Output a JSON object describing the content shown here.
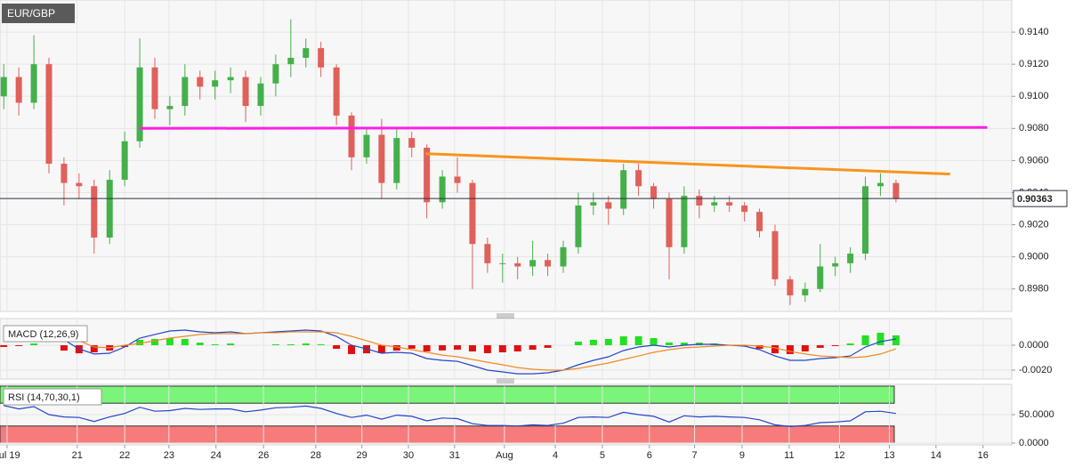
{
  "chart_data": [
    {
      "type": "candlestick",
      "title": "EUR/GBP",
      "x": [
        0.08,
        0.4,
        0.72,
        1.04,
        1.36,
        1.68,
        2.0,
        2.33,
        2.65,
        2.97,
        3.29,
        3.61,
        3.93,
        4.25,
        4.57,
        4.9,
        5.22,
        5.54,
        5.86,
        6.18,
        6.5,
        6.82,
        7.15,
        7.47,
        7.79,
        8.11,
        8.43,
        8.75,
        9.07,
        9.4,
        9.72,
        10.04,
        10.36,
        10.68,
        11.0,
        11.32,
        11.64,
        11.97,
        12.29,
        12.61,
        12.93,
        13.25,
        13.57,
        13.89,
        14.22,
        14.54,
        14.86,
        15.18,
        15.5,
        15.82,
        16.14,
        16.47,
        16.79,
        17.11,
        17.43,
        17.75,
        18.07,
        18.39,
        18.71,
        19.04
      ],
      "open": [
        0.91,
        0.9112,
        0.9096,
        0.912,
        0.9058,
        0.9046,
        0.9044,
        0.9012,
        0.9048,
        0.9072,
        0.9118,
        0.9092,
        0.9094,
        0.9112,
        0.9106,
        0.911,
        0.9112,
        0.9094,
        0.9108,
        0.912,
        0.9124,
        0.913,
        0.9118,
        0.9088,
        0.9062,
        0.9076,
        0.9046,
        0.9074,
        0.9068,
        0.9034,
        0.905,
        0.9046,
        0.9008,
        0.8996,
        0.8996,
        0.8994,
        0.8998,
        0.8994,
        0.9006,
        0.9032,
        0.9034,
        0.903,
        0.9054,
        0.9044,
        0.9036,
        0.9006,
        0.9038,
        0.9032,
        0.9034,
        0.9032,
        0.9028,
        0.9016,
        0.8986,
        0.8976,
        0.898,
        0.8994,
        0.8996,
        0.9002,
        0.9044,
        0.9046
      ],
      "high": [
        0.912,
        0.9118,
        0.9138,
        0.9124,
        0.9062,
        0.9052,
        0.9048,
        0.9054,
        0.9078,
        0.9136,
        0.9124,
        0.91,
        0.912,
        0.9116,
        0.9116,
        0.9118,
        0.9116,
        0.9112,
        0.9126,
        0.9148,
        0.9136,
        0.9134,
        0.912,
        0.909,
        0.908,
        0.9086,
        0.908,
        0.9078,
        0.907,
        0.9054,
        0.9062,
        0.9048,
        0.9012,
        0.9002,
        0.9,
        0.901,
        0.9002,
        0.901,
        0.904,
        0.904,
        0.9038,
        0.9058,
        0.9058,
        0.9046,
        0.904,
        0.9044,
        0.9042,
        0.9038,
        0.9038,
        0.9034,
        0.903,
        0.902,
        0.8988,
        0.8984,
        0.9008,
        0.9,
        0.9006,
        0.905,
        0.9052,
        0.9048
      ],
      "low": [
        0.9092,
        0.9088,
        0.9092,
        0.9052,
        0.9032,
        0.9036,
        0.9002,
        0.9008,
        0.9044,
        0.9068,
        0.9086,
        0.9082,
        0.9088,
        0.9098,
        0.9098,
        0.9102,
        0.9084,
        0.9088,
        0.91,
        0.9112,
        0.9118,
        0.9112,
        0.9082,
        0.9054,
        0.9058,
        0.9036,
        0.9042,
        0.9062,
        0.9024,
        0.903,
        0.904,
        0.898,
        0.899,
        0.8984,
        0.8986,
        0.8988,
        0.8988,
        0.899,
        0.9002,
        0.9026,
        0.902,
        0.9026,
        0.9038,
        0.903,
        0.8986,
        0.9002,
        0.9024,
        0.9028,
        0.9028,
        0.9022,
        0.9012,
        0.8982,
        0.897,
        0.8972,
        0.8978,
        0.8988,
        0.899,
        0.8998,
        0.9038,
        0.9034
      ],
      "close": [
        0.9112,
        0.9096,
        0.912,
        0.9058,
        0.9046,
        0.9044,
        0.9012,
        0.9048,
        0.9072,
        0.9118,
        0.9092,
        0.9094,
        0.9112,
        0.9106,
        0.911,
        0.9112,
        0.9094,
        0.9108,
        0.912,
        0.9124,
        0.913,
        0.9118,
        0.9088,
        0.9062,
        0.9076,
        0.9046,
        0.9074,
        0.9068,
        0.9034,
        0.905,
        0.9046,
        0.9008,
        0.8996,
        0.8996,
        0.8994,
        0.8998,
        0.8994,
        0.9006,
        0.9032,
        0.9034,
        0.903,
        0.9054,
        0.9044,
        0.9036,
        0.9006,
        0.9038,
        0.9032,
        0.9034,
        0.9032,
        0.9028,
        0.9016,
        0.8986,
        0.8976,
        0.898,
        0.8994,
        0.8996,
        0.9002,
        0.9044,
        0.9046,
        0.9036
      ],
      "up_color": "#45b04a",
      "down_color": "#e0605a",
      "xlim": [
        0,
        21.5
      ],
      "ylim": [
        0.8966,
        0.916
      ],
      "yticks": [
        {
          "value": 0.914,
          "label": "0.9140"
        },
        {
          "value": 0.912,
          "label": "0.9120"
        },
        {
          "value": 0.91,
          "label": "0.9100"
        },
        {
          "value": 0.908,
          "label": "0.9080"
        },
        {
          "value": 0.906,
          "label": "0.9060"
        },
        {
          "value": 0.904,
          "label": "0.9040"
        },
        {
          "value": 0.902,
          "label": "0.9020"
        },
        {
          "value": 0.9,
          "label": "0.9000"
        },
        {
          "value": 0.898,
          "label": "0.8980"
        }
      ],
      "last_price": 0.90363,
      "lines": [
        {
          "color": "#ff1ee6",
          "x": [
            2.97,
            20.98
          ],
          "y": [
            0.908,
            0.90806
          ]
        },
        {
          "color": "#f7941d",
          "x": [
            9.04,
            20.19
          ],
          "y": [
            0.90643,
            0.90516
          ]
        }
      ],
      "grid": true
    },
    {
      "type": "macd",
      "title": "MACD (12,26,9)",
      "x": [
        0.08,
        0.4,
        0.72,
        1.04,
        1.36,
        1.68,
        2.0,
        2.33,
        2.65,
        2.97,
        3.29,
        3.61,
        3.93,
        4.25,
        4.57,
        4.9,
        5.22,
        5.54,
        5.86,
        6.18,
        6.5,
        6.82,
        7.15,
        7.47,
        7.79,
        8.11,
        8.43,
        8.75,
        9.07,
        9.4,
        9.72,
        10.04,
        10.36,
        10.68,
        11.0,
        11.32,
        11.64,
        11.97,
        12.29,
        12.61,
        12.93,
        13.25,
        13.57,
        13.89,
        14.22,
        14.54,
        14.86,
        15.18,
        15.5,
        15.82,
        16.14,
        16.47,
        16.79,
        17.11,
        17.43,
        17.75,
        18.07,
        18.39,
        18.71,
        19.04
      ],
      "histogram": [
        -0.00014,
        -7e-05,
        0.00014,
        0,
        -0.00043,
        -0.00065,
        -0.00057,
        -0.00043,
        -0.00014,
        0.00043,
        0.0005,
        0.00057,
        0.0005,
        0.00021,
        7e-05,
        0.00014,
        0,
        0,
        7e-05,
        7e-05,
        0.00014,
        7e-05,
        -0.00029,
        -0.00071,
        -0.00065,
        -0.00064,
        -0.00043,
        -0.00028,
        -0.0005,
        -0.00042,
        -0.00036,
        -0.0005,
        -0.00064,
        -0.00057,
        -0.0005,
        -0.00036,
        -0.00021,
        0,
        0.00029,
        0.00043,
        0.0005,
        0.00071,
        0.00072,
        0.00057,
        0.00022,
        0.00021,
        0.00021,
        0.00014,
        0,
        -7e-05,
        -0.00029,
        -0.00065,
        -0.00071,
        -0.0005,
        -0.00021,
        -7e-05,
        0.00014,
        0.00079,
        0.001,
        0.00079
      ],
      "histogram_up_color": "#22e022",
      "histogram_down_color": "#e01010",
      "series": [
        {
          "color": "#2346c8",
          "values": [
            0.00129,
            0.00129,
            0.00143,
            0.00114,
            0.00043,
            -0.00029,
            -0.00071,
            -0.00064,
            -0.00014,
            0.00057,
            0.00086,
            0.00114,
            0.00121,
            0.00107,
            0.001,
            0.00107,
            0.00093,
            0.001,
            0.00107,
            0.00114,
            0.00121,
            0.00114,
            0.00071,
            0,
            -0.00029,
            -0.00064,
            -0.00057,
            -0.00064,
            -0.00107,
            -0.00121,
            -0.00129,
            -0.00164,
            -0.002,
            -0.00214,
            -0.00229,
            -0.00229,
            -0.00221,
            -0.002,
            -0.00157,
            -0.00121,
            -0.00093,
            -0.00043,
            -0.00014,
            0,
            -0.00014,
            0,
            7e-05,
            7e-05,
            0,
            -7e-05,
            -0.00036,
            -0.00086,
            -0.00121,
            -0.00121,
            -0.00107,
            -0.001,
            -0.00086,
            -0.00014,
            0.00029,
            0.0005
          ]
        },
        {
          "color": "#f08a24",
          "values": [
            0.00143,
            0.00136,
            0.00129,
            0.00114,
            0.00086,
            0.00036,
            -0.00014,
            -0.00021,
            0,
            0.00014,
            0.00036,
            0.00057,
            0.00071,
            0.00086,
            0.00093,
            0.00093,
            0.00093,
            0.001,
            0.001,
            0.00107,
            0.00107,
            0.00107,
            0.001,
            0.00071,
            0.00036,
            0,
            -0.00014,
            -0.00036,
            -0.00057,
            -0.00079,
            -0.00093,
            -0.00114,
            -0.00136,
            -0.00157,
            -0.00179,
            -0.00193,
            -0.002,
            -0.002,
            -0.00186,
            -0.00164,
            -0.00143,
            -0.00114,
            -0.00086,
            -0.00057,
            -0.00036,
            -0.00021,
            -0.00014,
            -7e-05,
            0,
            0,
            -7e-05,
            -0.00021,
            -0.0005,
            -0.00071,
            -0.00086,
            -0.00093,
            -0.001,
            -0.00093,
            -0.00071,
            -0.00029
          ]
        }
      ],
      "xlim": [
        0,
        21.5
      ],
      "ylim": [
        -0.00264,
        0.00214
      ],
      "yticks": [
        {
          "value": 0,
          "label": "0.0000"
        },
        {
          "value": -0.002,
          "label": "-0.0020"
        }
      ],
      "grid": true
    },
    {
      "type": "rsi",
      "title": "RSI (14,70,30,1)",
      "x": [
        0.08,
        0.4,
        0.72,
        1.04,
        1.36,
        1.68,
        2.0,
        2.33,
        2.65,
        2.97,
        3.29,
        3.61,
        3.93,
        4.25,
        4.57,
        4.9,
        5.22,
        5.54,
        5.86,
        6.18,
        6.5,
        6.82,
        7.15,
        7.47,
        7.79,
        8.11,
        8.43,
        8.75,
        9.07,
        9.4,
        9.72,
        10.04,
        10.36,
        10.68,
        11.0,
        11.32,
        11.64,
        11.97,
        12.29,
        12.61,
        12.93,
        13.25,
        13.57,
        13.89,
        14.22,
        14.54,
        14.86,
        15.18,
        15.5,
        15.82,
        16.14,
        16.47,
        16.79,
        17.11,
        17.43,
        17.75,
        18.07,
        18.39,
        18.71,
        19.04
      ],
      "values": [
        66,
        60,
        64,
        50,
        46,
        45,
        38,
        46,
        52,
        63,
        56,
        57,
        61,
        59,
        60,
        60,
        55,
        58,
        62,
        63,
        65,
        61,
        52,
        45,
        49,
        42,
        49,
        47,
        39,
        44,
        43,
        34,
        31,
        31,
        30,
        32,
        31,
        35,
        45,
        46,
        45,
        54,
        50,
        47,
        37,
        48,
        46,
        47,
        46,
        45,
        41,
        32,
        29,
        31,
        36,
        37,
        39,
        55,
        56,
        52
      ],
      "color": "#2346c8",
      "bands": [
        {
          "from": 70,
          "to": 100,
          "color": "#7af57a"
        },
        {
          "from": 0,
          "to": 30,
          "color": "#f77b7b"
        }
      ],
      "xlim": [
        0,
        21.5
      ],
      "ylim": [
        0,
        100
      ],
      "yticks": [
        {
          "value": 50,
          "label": "50.0000"
        },
        {
          "value": 0,
          "label": "0.0000"
        }
      ],
      "xticks": [
        {
          "value": 0.15,
          "label": "Jul 19"
        },
        {
          "value": 1.64,
          "label": "21"
        },
        {
          "value": 2.65,
          "label": "22"
        },
        {
          "value": 3.59,
          "label": "23"
        },
        {
          "value": 4.59,
          "label": "24"
        },
        {
          "value": 5.6,
          "label": "26"
        },
        {
          "value": 6.71,
          "label": "28"
        },
        {
          "value": 7.69,
          "label": "29"
        },
        {
          "value": 8.68,
          "label": "30"
        },
        {
          "value": 9.66,
          "label": "31"
        },
        {
          "value": 10.72,
          "label": "Aug"
        },
        {
          "value": 11.8,
          "label": "4"
        },
        {
          "value": 12.8,
          "label": "5"
        },
        {
          "value": 13.8,
          "label": "6"
        },
        {
          "value": 14.76,
          "label": "7"
        },
        {
          "value": 15.77,
          "label": "9"
        },
        {
          "value": 16.77,
          "label": "11"
        },
        {
          "value": 17.84,
          "label": "12"
        },
        {
          "value": 18.9,
          "label": "13"
        },
        {
          "value": 19.89,
          "label": "14"
        },
        {
          "value": 20.89,
          "label": "16"
        }
      ],
      "grid": true
    }
  ]
}
